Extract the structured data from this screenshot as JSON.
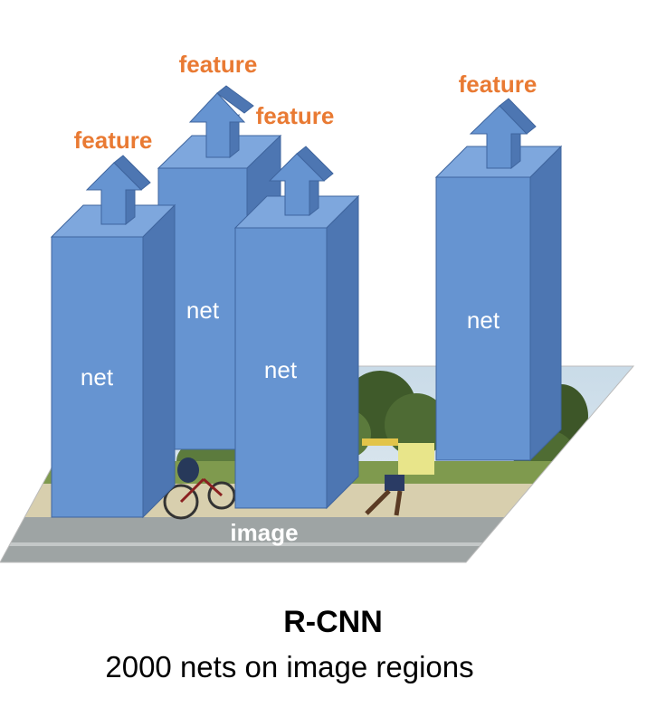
{
  "colors": {
    "box_front": "#6694d1",
    "box_top": "#7ea7dd",
    "box_side": "#4d76b2",
    "box_edge": "#3f659e",
    "feature_text": "#e97a33",
    "net_text": "#ffffff",
    "image_text": "#ffffff"
  },
  "image_plane": {
    "label": "image"
  },
  "nets": [
    {
      "label": "net",
      "feature": "feature"
    },
    {
      "label": "net",
      "feature": "feature"
    },
    {
      "label": "net",
      "feature": "feature"
    },
    {
      "label": "net",
      "feature": "feature"
    }
  ],
  "caption": {
    "title": "R-CNN",
    "subtitle": "2000 nets on image regions"
  }
}
